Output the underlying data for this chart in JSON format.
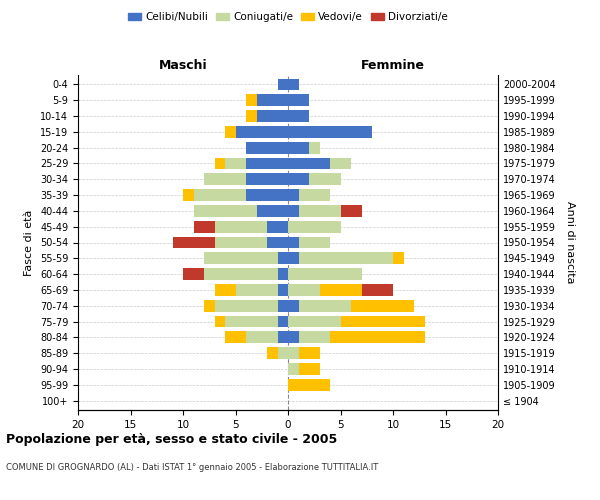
{
  "age_groups": [
    "100+",
    "95-99",
    "90-94",
    "85-89",
    "80-84",
    "75-79",
    "70-74",
    "65-69",
    "60-64",
    "55-59",
    "50-54",
    "45-49",
    "40-44",
    "35-39",
    "30-34",
    "25-29",
    "20-24",
    "15-19",
    "10-14",
    "5-9",
    "0-4"
  ],
  "birth_years": [
    "≤ 1904",
    "1905-1909",
    "1910-1914",
    "1915-1919",
    "1920-1924",
    "1925-1929",
    "1930-1934",
    "1935-1939",
    "1940-1944",
    "1945-1949",
    "1950-1954",
    "1955-1959",
    "1960-1964",
    "1965-1969",
    "1970-1974",
    "1975-1979",
    "1980-1984",
    "1985-1989",
    "1990-1994",
    "1995-1999",
    "2000-2004"
  ],
  "maschi": {
    "celibi": [
      0,
      0,
      0,
      0,
      1,
      1,
      1,
      1,
      1,
      1,
      2,
      2,
      3,
      4,
      4,
      4,
      4,
      5,
      3,
      3,
      1
    ],
    "coniugati": [
      0,
      0,
      0,
      1,
      3,
      5,
      6,
      4,
      7,
      7,
      5,
      5,
      6,
      5,
      4,
      2,
      0,
      0,
      0,
      0,
      0
    ],
    "vedovi": [
      0,
      0,
      0,
      1,
      2,
      1,
      1,
      2,
      0,
      0,
      0,
      0,
      0,
      1,
      0,
      1,
      0,
      1,
      1,
      1,
      0
    ],
    "divorziati": [
      0,
      0,
      0,
      0,
      0,
      0,
      0,
      0,
      2,
      0,
      4,
      2,
      0,
      0,
      0,
      0,
      0,
      0,
      0,
      0,
      0
    ]
  },
  "femmine": {
    "nubili": [
      0,
      0,
      0,
      0,
      1,
      0,
      1,
      0,
      0,
      1,
      1,
      0,
      1,
      1,
      2,
      4,
      2,
      8,
      2,
      2,
      1
    ],
    "coniugate": [
      0,
      0,
      1,
      1,
      3,
      5,
      5,
      3,
      7,
      9,
      3,
      5,
      4,
      3,
      3,
      2,
      1,
      0,
      0,
      0,
      0
    ],
    "vedove": [
      0,
      4,
      2,
      2,
      9,
      8,
      6,
      4,
      0,
      1,
      0,
      0,
      0,
      0,
      0,
      0,
      0,
      0,
      0,
      0,
      0
    ],
    "divorziate": [
      0,
      0,
      0,
      0,
      0,
      0,
      0,
      3,
      0,
      0,
      0,
      0,
      2,
      0,
      0,
      0,
      0,
      0,
      0,
      0,
      0
    ]
  },
  "color_celibi": "#4472c4",
  "color_coniugati": "#c5d9a0",
  "color_vedovi": "#ffc000",
  "color_divorziati": "#c0392b",
  "title": "Popolazione per età, sesso e stato civile - 2005",
  "subtitle": "COMUNE DI GROGNARDO (AL) - Dati ISTAT 1° gennaio 2005 - Elaborazione TUTTITALIA.IT",
  "xlabel_left": "Maschi",
  "xlabel_right": "Femmine",
  "ylabel_left": "Fasce di età",
  "ylabel_right": "Anni di nascita",
  "xlim": 20,
  "bg_color": "#ffffff",
  "grid_color": "#cccccc"
}
